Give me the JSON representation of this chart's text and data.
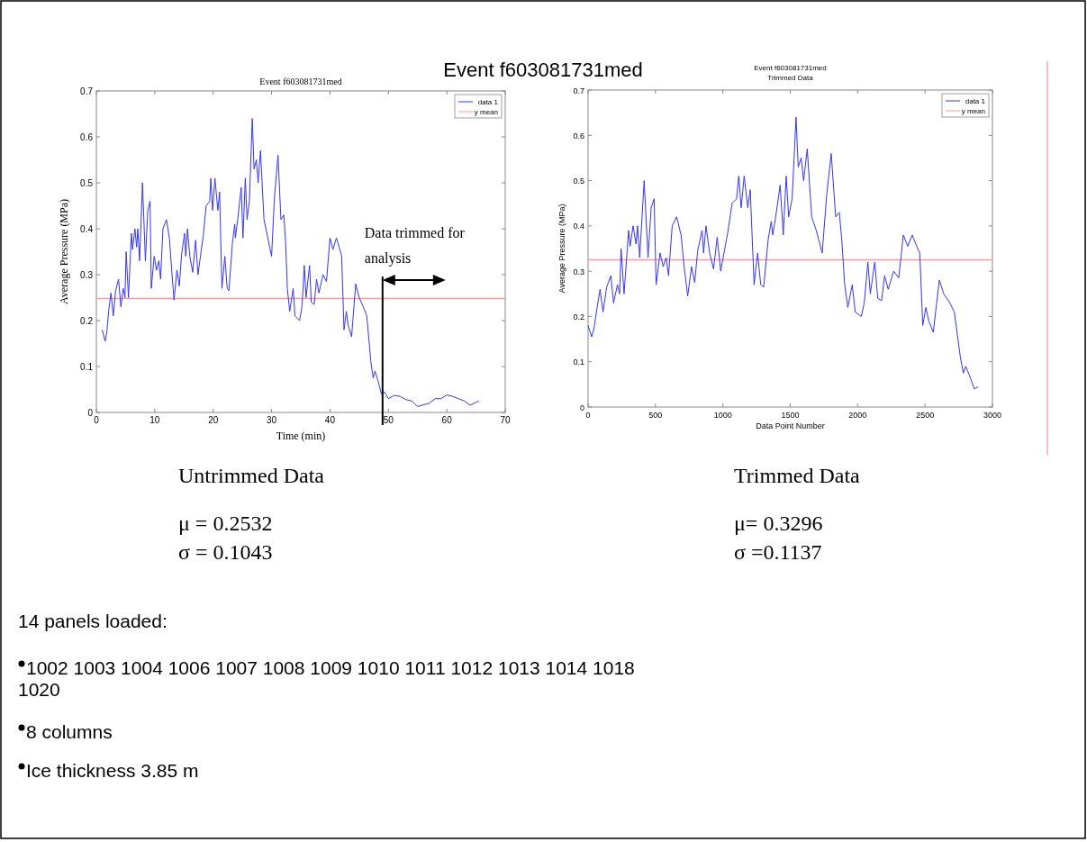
{
  "chart_data": [
    {
      "type": "line",
      "title": "Event f603081731med",
      "xlabel": "Time (min)",
      "ylabel": "Average Pressure (MPa)",
      "xlim": [
        0,
        70
      ],
      "xticks": [
        0,
        10,
        20,
        30,
        40,
        50,
        60,
        70
      ],
      "ylim": [
        0,
        0.7
      ],
      "yticks": [
        0,
        0.1,
        0.2,
        0.3,
        0.4,
        0.5,
        0.6,
        0.7
      ],
      "legend": "top right",
      "series": [
        {
          "name": "data 1",
          "color": "#3333ff",
          "x": [
            1.0,
            1.5,
            1.8,
            2.1,
            2.5,
            2.9,
            3.3,
            3.8,
            4.2,
            4.6,
            4.9,
            5.1,
            5.5,
            6.0,
            6.2,
            6.6,
            6.9,
            7.1,
            7.4,
            7.9,
            8.4,
            8.8,
            9.2,
            9.4,
            9.9,
            10.3,
            10.7,
            11.0,
            11.4,
            12.0,
            12.5,
            12.9,
            13.3,
            13.8,
            14.2,
            14.6,
            15.1,
            15.3,
            15.6,
            16.0,
            16.5,
            17.0,
            17.4,
            18.3,
            18.8,
            19.4,
            19.6,
            19.9,
            20.3,
            20.8,
            21.1,
            21.5,
            22.0,
            22.4,
            22.7,
            23.3,
            23.7,
            23.8,
            24.2,
            24.8,
            25.1,
            25.5,
            25.8,
            26.2,
            26.7,
            27.0,
            27.4,
            27.7,
            28.1,
            28.7,
            29.2,
            30.0,
            30.5,
            31.1,
            31.6,
            32.1,
            32.4,
            32.7,
            33.1,
            33.7,
            34.0,
            34.8,
            35.2,
            35.6,
            35.9,
            36.5,
            36.8,
            37.3,
            37.7,
            38.1,
            38.8,
            39.4,
            40.0,
            40.5,
            41.1,
            41.8,
            42.0,
            42.4,
            42.8,
            43.1,
            43.7,
            44.4,
            45.0,
            45.7,
            46.3,
            47.0,
            47.4,
            47.7,
            48.2,
            48.8,
            49.3,
            50,
            51,
            52,
            53,
            54,
            55,
            57,
            58,
            59,
            60,
            61,
            62,
            63,
            64,
            65,
            65.5
          ],
          "values": [
            0.18,
            0.155,
            0.175,
            0.22,
            0.26,
            0.21,
            0.265,
            0.29,
            0.23,
            0.27,
            0.25,
            0.35,
            0.25,
            0.39,
            0.355,
            0.4,
            0.36,
            0.4,
            0.33,
            0.5,
            0.33,
            0.44,
            0.46,
            0.27,
            0.34,
            0.31,
            0.33,
            0.29,
            0.4,
            0.42,
            0.38,
            0.31,
            0.245,
            0.31,
            0.275,
            0.345,
            0.39,
            0.34,
            0.4,
            0.34,
            0.305,
            0.375,
            0.3,
            0.385,
            0.45,
            0.46,
            0.51,
            0.44,
            0.51,
            0.44,
            0.48,
            0.27,
            0.34,
            0.27,
            0.265,
            0.37,
            0.41,
            0.38,
            0.42,
            0.49,
            0.38,
            0.51,
            0.42,
            0.46,
            0.64,
            0.53,
            0.55,
            0.5,
            0.57,
            0.42,
            0.39,
            0.34,
            0.47,
            0.56,
            0.42,
            0.43,
            0.37,
            0.27,
            0.22,
            0.27,
            0.21,
            0.2,
            0.23,
            0.32,
            0.25,
            0.32,
            0.24,
            0.235,
            0.29,
            0.26,
            0.3,
            0.285,
            0.38,
            0.355,
            0.38,
            0.35,
            0.34,
            0.18,
            0.22,
            0.19,
            0.165,
            0.28,
            0.25,
            0.23,
            0.21,
            0.11,
            0.075,
            0.09,
            0.07,
            0.04,
            0.045,
            0.03,
            0.037,
            0.035,
            0.028,
            0.025,
            0.013,
            0.02,
            0.03,
            0.03,
            0.038,
            0.035,
            0.03,
            0.025,
            0.016,
            0.022,
            0.025
          ]
        }
      ],
      "ref_lines": [
        {
          "axis": "y",
          "value": 0.248,
          "label": "y mean",
          "color": "#ff9999"
        },
        {
          "axis": "x",
          "value": 49,
          "label": "Data trimmed for analysis",
          "color": "#000000"
        }
      ]
    },
    {
      "type": "line",
      "title": "Event f603081731med",
      "subtitle": "Trimmed Data",
      "xlabel": "Data Point Number",
      "ylabel": "Average Pressure (MPa)",
      "xlim": [
        0,
        3000
      ],
      "xticks": [
        0,
        500,
        1000,
        1500,
        2000,
        2500,
        3000
      ],
      "ylim": [
        0,
        0.7
      ],
      "yticks": [
        0,
        0.1,
        0.2,
        0.3,
        0.4,
        0.5,
        0.6,
        0.7
      ],
      "legend": "top right",
      "series": [
        {
          "name": "data 1",
          "color": "#3333ff",
          "x": [
            0,
            27,
            45,
            67,
            89,
            111,
            138,
            169,
            189,
            218,
            234,
            245,
            267,
            301,
            312,
            334,
            356,
            367,
            383,
            416,
            445,
            468,
            490,
            505,
            534,
            557,
            579,
            597,
            624,
            657,
            690,
            713,
            739,
            768,
            791,
            813,
            846,
            857,
            875,
            902,
            931,
            958,
            984,
            1036,
            1069,
            1102,
            1118,
            1136,
            1158,
            1185,
            1203,
            1232,
            1258,
            1281,
            1303,
            1336,
            1359,
            1370,
            1392,
            1425,
            1448,
            1470,
            1488,
            1514,
            1543,
            1559,
            1581,
            1599,
            1626,
            1659,
            1693,
            1737,
            1771,
            1804,
            1837,
            1864,
            1882,
            1904,
            1927,
            1960,
            1982,
            2027,
            2049,
            2076,
            2094,
            2127,
            2149,
            2178,
            2200,
            2227,
            2267,
            2305,
            2339,
            2372,
            2405,
            2445,
            2461,
            2483,
            2506,
            2528,
            2561,
            2606,
            2639,
            2684,
            2717,
            2762,
            2784,
            2802,
            2829,
            2866,
            2895
          ],
          "values": [
            0.18,
            0.155,
            0.175,
            0.22,
            0.26,
            0.21,
            0.265,
            0.29,
            0.23,
            0.27,
            0.25,
            0.35,
            0.25,
            0.39,
            0.355,
            0.4,
            0.36,
            0.4,
            0.33,
            0.5,
            0.33,
            0.44,
            0.46,
            0.27,
            0.34,
            0.31,
            0.33,
            0.29,
            0.4,
            0.42,
            0.38,
            0.31,
            0.245,
            0.31,
            0.275,
            0.345,
            0.39,
            0.34,
            0.4,
            0.34,
            0.305,
            0.375,
            0.3,
            0.385,
            0.45,
            0.46,
            0.51,
            0.44,
            0.51,
            0.44,
            0.48,
            0.27,
            0.34,
            0.27,
            0.265,
            0.37,
            0.41,
            0.38,
            0.42,
            0.49,
            0.38,
            0.51,
            0.42,
            0.46,
            0.64,
            0.53,
            0.55,
            0.5,
            0.57,
            0.42,
            0.39,
            0.34,
            0.47,
            0.56,
            0.42,
            0.43,
            0.37,
            0.27,
            0.22,
            0.27,
            0.21,
            0.2,
            0.23,
            0.32,
            0.25,
            0.32,
            0.24,
            0.235,
            0.29,
            0.26,
            0.3,
            0.285,
            0.38,
            0.355,
            0.38,
            0.35,
            0.34,
            0.18,
            0.22,
            0.19,
            0.165,
            0.28,
            0.25,
            0.23,
            0.21,
            0.11,
            0.075,
            0.09,
            0.07,
            0.04,
            0.045
          ]
        }
      ],
      "ref_lines": [
        {
          "axis": "y",
          "value": 0.325,
          "label": "y mean",
          "color": "#ff9999"
        }
      ]
    },
    {
      "type": "other",
      "title": "Event f603081731med",
      "annotations": [
        "Untrimmed Data",
        "μ = 0.2532",
        "σ = 0.1043",
        "Trimmed Data",
        "μ= 0.3296",
        "σ =0.1137",
        "14 panels loaded:",
        "1002 1003 1004 1006 1007 1008 1009 1010 1011 1012 1013 1014 1018 1020",
        "8 columns",
        "Ice thickness 3.85 m"
      ]
    }
  ]
}
